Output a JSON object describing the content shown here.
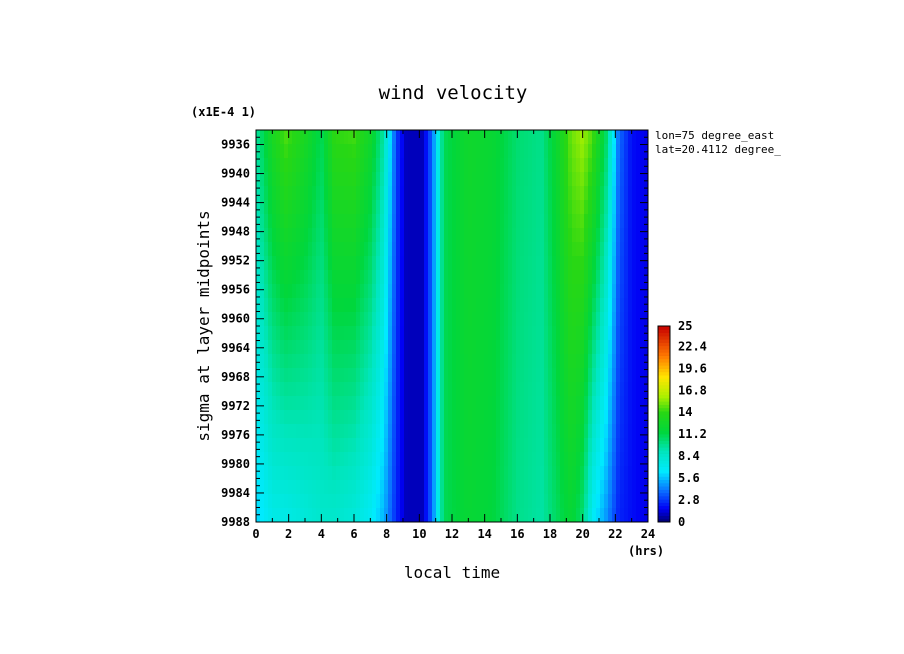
{
  "chart_data": {
    "type": "heatmap",
    "title": "wind velocity",
    "xlabel": "local time",
    "ylabel": "sigma at layer midpoints",
    "x_unit": "(hrs)",
    "y_scale_note": "(x1E-4 1)",
    "xlim": [
      0,
      24
    ],
    "ylim": [
      9934,
      9988
    ],
    "y_inverted": true,
    "x_ticks": [
      0,
      2,
      4,
      6,
      8,
      10,
      12,
      14,
      16,
      18,
      20,
      22,
      24
    ],
    "y_ticks": [
      9936,
      9940,
      9944,
      9948,
      9952,
      9956,
      9960,
      9964,
      9968,
      9972,
      9976,
      9980,
      9984,
      9988
    ],
    "annotations": [
      "lon=75 degree_east",
      "lat=20.4112 degree_"
    ],
    "colorbar": {
      "min": 0,
      "max": 25,
      "tick_labels": [
        "25",
        "22.4",
        "19.6",
        "16.8",
        "14",
        "11.2",
        "8.4",
        "5.6",
        "2.8",
        "0"
      ],
      "tick_values": [
        25,
        22.4,
        19.6,
        16.8,
        14,
        11.2,
        8.4,
        5.6,
        2.8,
        0
      ]
    },
    "profile_top": {
      "x": [
        0,
        1,
        1.8,
        3,
        4,
        4.8,
        6,
        7,
        7.8,
        8.6,
        9.2,
        10.2,
        10.8,
        11.5,
        13,
        14.5,
        16,
        17.5,
        18.5,
        19.3,
        20,
        20.6,
        21.4,
        22.2,
        23,
        24
      ],
      "values": [
        9.5,
        13,
        14.5,
        13,
        11,
        14,
        14.3,
        12.5,
        9.5,
        3,
        1,
        1,
        4,
        11,
        12.5,
        12,
        10.5,
        10,
        12.5,
        15,
        15.8,
        14.5,
        11,
        4,
        2,
        1.5
      ]
    },
    "profile_bottom": {
      "x": [
        0,
        1,
        1.8,
        3,
        4,
        4.8,
        6,
        7,
        7.8,
        8.6,
        9.2,
        10.2,
        10.8,
        11.5,
        13,
        14.5,
        16,
        17.5,
        18.5,
        19.3,
        20,
        20.6,
        21.4,
        22.2,
        23,
        24
      ],
      "values": [
        6,
        7.5,
        7.5,
        8,
        8.5,
        8.5,
        8,
        7,
        5.5,
        2.5,
        1,
        1,
        4,
        11,
        12,
        11.5,
        10,
        9.5,
        11,
        12,
        10.5,
        7,
        5,
        2.5,
        2,
        1.5
      ]
    }
  }
}
